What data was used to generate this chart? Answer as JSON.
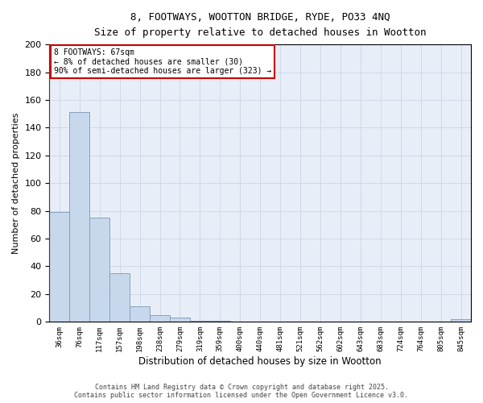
{
  "title1": "8, FOOTWAYS, WOOTTON BRIDGE, RYDE, PO33 4NQ",
  "title2": "Size of property relative to detached houses in Wootton",
  "xlabel": "Distribution of detached houses by size in Wootton",
  "ylabel": "Number of detached properties",
  "bin_labels": [
    "36sqm",
    "76sqm",
    "117sqm",
    "157sqm",
    "198sqm",
    "238sqm",
    "279sqm",
    "319sqm",
    "359sqm",
    "400sqm",
    "440sqm",
    "481sqm",
    "521sqm",
    "562sqm",
    "602sqm",
    "643sqm",
    "683sqm",
    "724sqm",
    "764sqm",
    "805sqm",
    "845sqm"
  ],
  "bar_heights": [
    79,
    151,
    75,
    35,
    11,
    5,
    3,
    1,
    1,
    0,
    0,
    0,
    0,
    0,
    0,
    0,
    0,
    0,
    0,
    0,
    2
  ],
  "bar_color": "#c8d8ec",
  "bar_edge_color": "#7799bb",
  "annotation_line1": "8 FOOTWAYS: 67sqm",
  "annotation_line2": "← 8% of detached houses are smaller (30)",
  "annotation_line3": "90% of semi-detached houses are larger (323) →",
  "annotation_box_color": "#cc0000",
  "ylim": [
    0,
    200
  ],
  "yticks": [
    0,
    20,
    40,
    60,
    80,
    100,
    120,
    140,
    160,
    180,
    200
  ],
  "grid_color": "#d0d8e8",
  "bg_color": "#e8eef8",
  "vline_x_index": 0,
  "footer1": "Contains HM Land Registry data © Crown copyright and database right 2025.",
  "footer2": "Contains public sector information licensed under the Open Government Licence v3.0."
}
